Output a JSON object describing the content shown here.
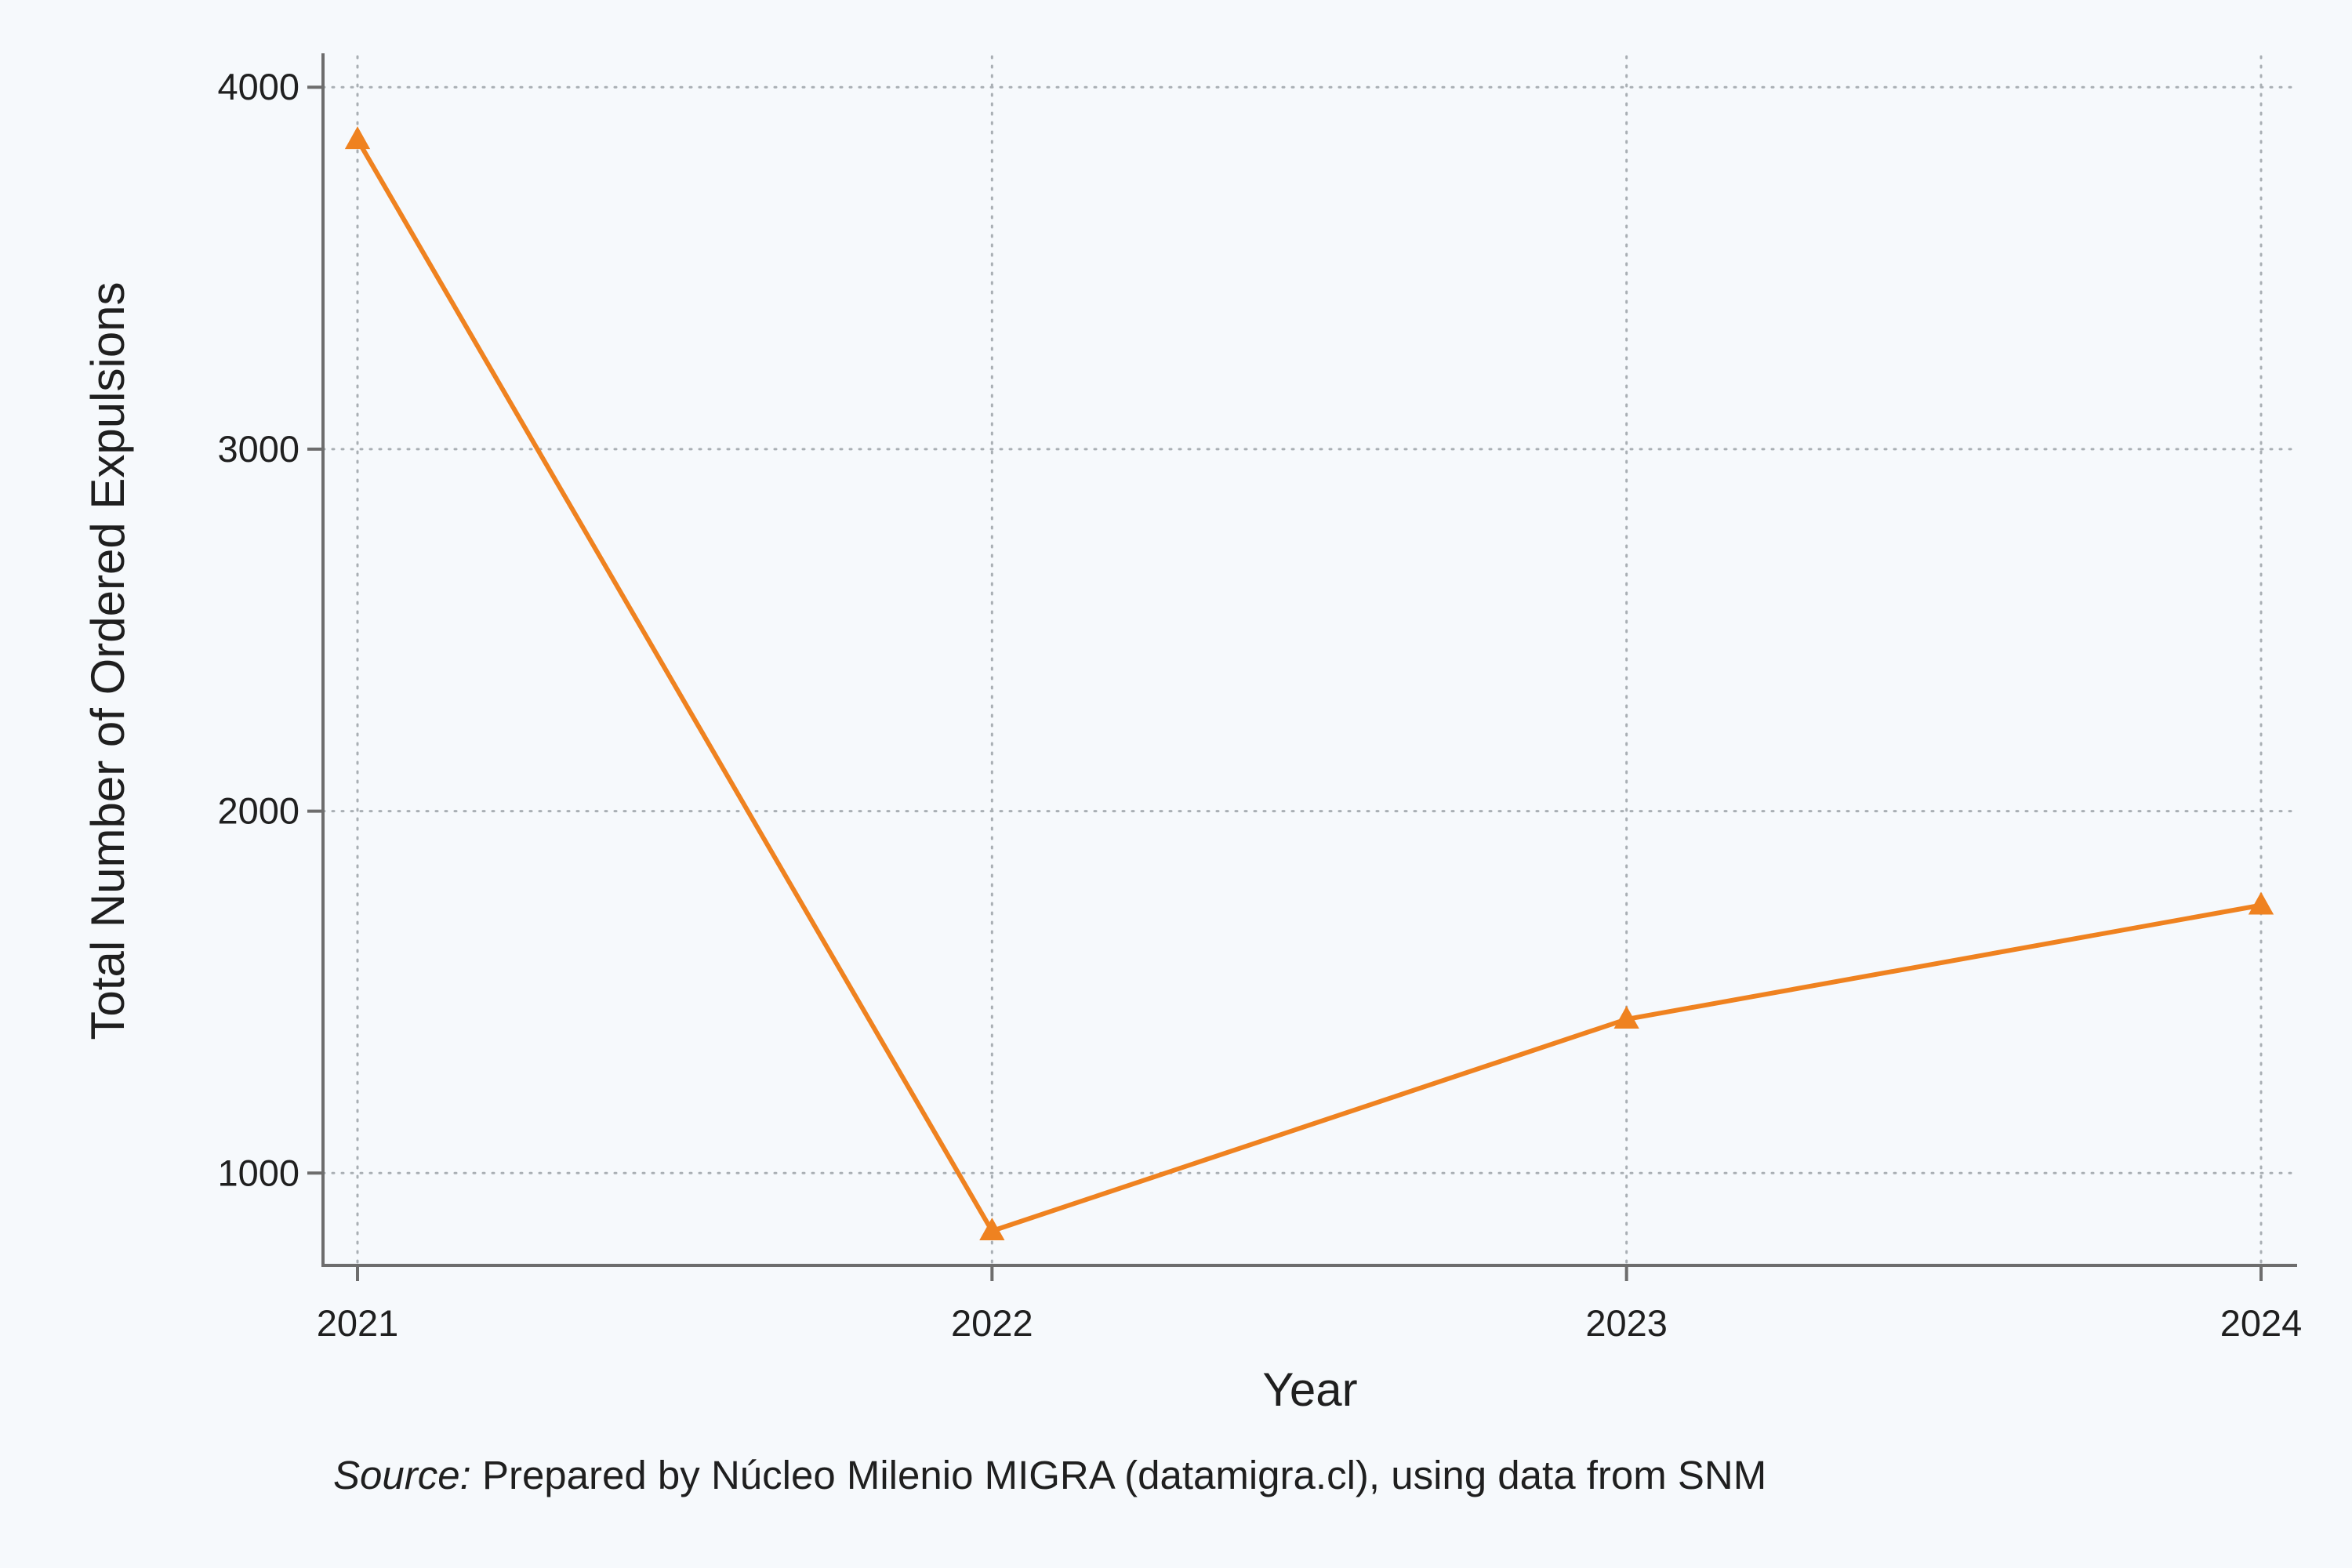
{
  "chart_data": {
    "type": "line",
    "title": "",
    "xlabel": "Year",
    "ylabel": "Total Number of Ordered Expulsions",
    "x": [
      "2021",
      "2022",
      "2023",
      "2024"
    ],
    "series": [
      {
        "values": [
          3855,
          840,
          1425,
          1740
        ],
        "color": "#ef8220",
        "marker": "triangle"
      }
    ],
    "yticks": [
      1000,
      2000,
      3000,
      4000
    ],
    "ylim": [
      745,
      4085
    ],
    "grid": true,
    "grid_style": "dotted"
  },
  "source": {
    "label": "Source:",
    "text": "Prepared by Núcleo Milenio MIGRA (datamigra.cl), using data from SNM"
  },
  "colors": {
    "background": "#f6f9fc",
    "series": "#ef8220",
    "axis": "#6d6d6d",
    "grid": "#a9afb4"
  }
}
